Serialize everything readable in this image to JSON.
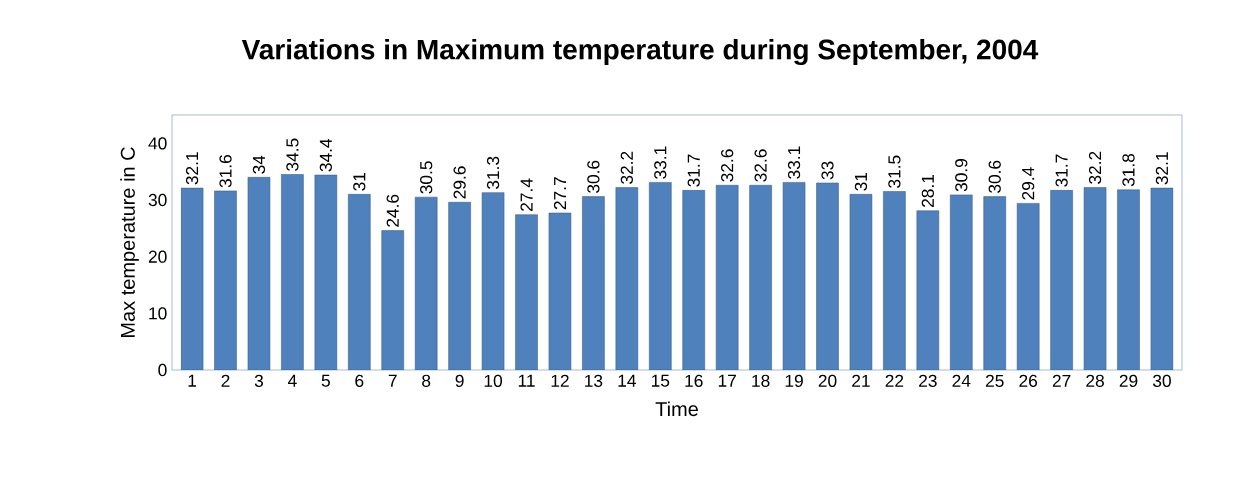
{
  "chart_data": {
    "type": "bar",
    "title": "Variations in Maximum temperature during  September, 2004",
    "xlabel": "Time",
    "ylabel": "Max temperature in C",
    "categories": [
      "1",
      "2",
      "3",
      "4",
      "5",
      "6",
      "7",
      "8",
      "9",
      "10",
      "11",
      "12",
      "13",
      "14",
      "15",
      "16",
      "17",
      "18",
      "19",
      "20",
      "21",
      "22",
      "23",
      "24",
      "25",
      "26",
      "27",
      "28",
      "29",
      "30"
    ],
    "values": [
      32.1,
      31.6,
      34,
      34.5,
      34.4,
      31,
      24.6,
      30.5,
      29.6,
      31.3,
      27.4,
      27.7,
      30.6,
      32.2,
      33.1,
      31.7,
      32.6,
      32.6,
      33.1,
      33,
      31,
      31.5,
      28.1,
      30.9,
      30.6,
      29.4,
      31.7,
      32.2,
      31.8,
      32.1
    ],
    "color": "#4f81bd",
    "ylim": [
      0,
      45
    ],
    "yticks": [
      0,
      10,
      20,
      30,
      40
    ],
    "data_labels": true,
    "grid": false
  }
}
